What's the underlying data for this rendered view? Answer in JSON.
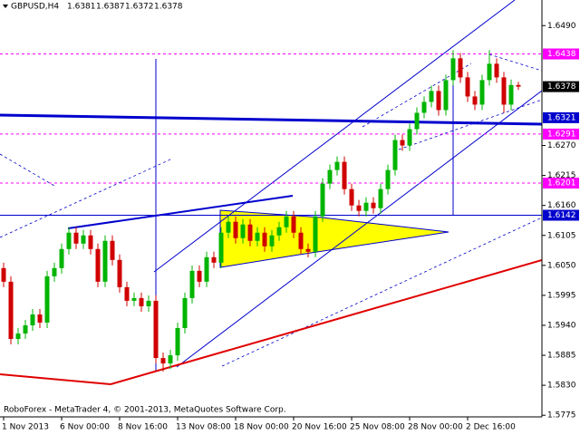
{
  "chart_data": {
    "type": "candlestick",
    "title": "GBPUSD,H4",
    "footer": "RoboForex - MetaTrader 4, © 2001-2013, MetaQuotes Software Corp.",
    "up_color": "#00b400",
    "down_color": "#d00000",
    "categories": [
      "1 Nov 2013",
      null,
      null,
      null,
      null,
      null,
      null,
      null,
      "6 Nov 00:00",
      null,
      null,
      null,
      null,
      null,
      null,
      null,
      "8 Nov 16:00",
      null,
      null,
      null,
      null,
      null,
      null,
      null,
      "13 Nov 08:00",
      null,
      null,
      null,
      null,
      null,
      null,
      null,
      "18 Nov 00:00",
      null,
      null,
      null,
      null,
      null,
      null,
      null,
      "20 Nov 16:00",
      null,
      null,
      null,
      null,
      null,
      null,
      null,
      "25 Nov 08:00",
      null,
      null,
      null,
      null,
      null,
      null,
      null,
      "28 Nov 00:00",
      null,
      null,
      null,
      null,
      null,
      null,
      null,
      "2 Dec 16:00",
      null,
      null,
      null,
      null,
      null,
      null,
      null
    ],
    "open": [
      1.6045,
      1.602,
      1.5915,
      1.5925,
      1.594,
      1.596,
      1.5945,
      1.603,
      1.6045,
      1.608,
      1.611,
      1.609,
      1.6105,
      1.608,
      1.602,
      1.6095,
      1.606,
      1.601,
      1.5985,
      1.599,
      1.5975,
      1.5985,
      1.588,
      1.587,
      1.5885,
      1.5935,
      1.599,
      1.604,
      1.602,
      1.6065,
      1.6055,
      1.611,
      1.613,
      1.61,
      1.6125,
      1.6095,
      1.611,
      1.6085,
      1.6105,
      1.612,
      1.614,
      1.611,
      1.608,
      1.6075,
      1.614,
      1.62,
      1.6225,
      1.624,
      1.619,
      1.616,
      1.615,
      1.6165,
      1.6155,
      1.619,
      1.6225,
      1.628,
      1.627,
      1.63,
      1.633,
      1.635,
      1.637,
      1.6335,
      1.639,
      1.643,
      1.6395,
      1.636,
      1.6345,
      1.639,
      1.642,
      1.6395,
      1.6345,
      1.6381
    ],
    "high": [
      1.6055,
      1.603,
      1.5935,
      1.595,
      1.597,
      1.597,
      1.604,
      1.6055,
      1.609,
      1.612,
      1.612,
      1.6115,
      1.6115,
      1.609,
      1.6105,
      1.6105,
      1.607,
      1.602,
      1.6,
      1.6,
      1.5995,
      1.5995,
      1.589,
      1.5895,
      1.5945,
      1.6,
      1.605,
      1.605,
      1.6075,
      1.6075,
      1.612,
      1.614,
      1.614,
      1.6135,
      1.6135,
      1.612,
      1.612,
      1.6115,
      1.613,
      1.615,
      1.615,
      1.612,
      1.609,
      1.615,
      1.621,
      1.6235,
      1.625,
      1.625,
      1.62,
      1.617,
      1.6175,
      1.6175,
      1.62,
      1.6235,
      1.629,
      1.629,
      1.631,
      1.634,
      1.636,
      1.638,
      1.638,
      1.64,
      1.6445,
      1.644,
      1.6405,
      1.637,
      1.64,
      1.6445,
      1.643,
      1.6405,
      1.6391,
      1.6387
    ],
    "low": [
      1.601,
      1.5905,
      1.5905,
      1.5915,
      1.593,
      1.5935,
      1.5935,
      1.602,
      1.6035,
      1.607,
      1.608,
      1.608,
      1.607,
      1.601,
      1.601,
      1.605,
      1.6,
      1.5975,
      1.5975,
      1.5965,
      1.5965,
      1.587,
      1.5855,
      1.586,
      1.5875,
      1.5925,
      1.598,
      1.601,
      1.601,
      1.6045,
      1.6045,
      1.61,
      1.609,
      1.609,
      1.6085,
      1.6085,
      1.6075,
      1.6075,
      1.6095,
      1.611,
      1.61,
      1.607,
      1.6065,
      1.6065,
      1.613,
      1.619,
      1.6215,
      1.618,
      1.615,
      1.614,
      1.614,
      1.6145,
      1.6145,
      1.618,
      1.6215,
      1.626,
      1.626,
      1.629,
      1.632,
      1.634,
      1.6325,
      1.6325,
      1.638,
      1.6385,
      1.635,
      1.6335,
      1.6335,
      1.638,
      1.6385,
      1.633,
      1.6335,
      1.6372
    ],
    "close": [
      1.602,
      1.5915,
      1.5925,
      1.594,
      1.596,
      1.5945,
      1.603,
      1.6045,
      1.608,
      1.611,
      1.609,
      1.6105,
      1.608,
      1.602,
      1.6095,
      1.606,
      1.601,
      1.5985,
      1.599,
      1.5975,
      1.5985,
      1.588,
      1.587,
      1.5885,
      1.5935,
      1.599,
      1.604,
      1.602,
      1.6065,
      1.6055,
      1.611,
      1.613,
      1.61,
      1.6125,
      1.6095,
      1.611,
      1.6085,
      1.6105,
      1.612,
      1.614,
      1.611,
      1.608,
      1.6075,
      1.614,
      1.62,
      1.6225,
      1.624,
      1.619,
      1.616,
      1.615,
      1.6165,
      1.6155,
      1.619,
      1.6225,
      1.628,
      1.627,
      1.63,
      1.633,
      1.635,
      1.637,
      1.6335,
      1.639,
      1.643,
      1.6395,
      1.636,
      1.6345,
      1.639,
      1.642,
      1.6395,
      1.6345,
      1.6381,
      1.6378
    ],
    "ylim": [
      1.5772,
      1.6537
    ],
    "yticks": [
      {
        "value": 1.649,
        "label": "1.6490"
      },
      {
        "value": 1.627,
        "label": "1.6270"
      },
      1.6215,
      {
        "value": 1.616,
        "label": "1.6160"
      },
      1.6105,
      {
        "value": 1.605,
        "label": "1.6050"
      },
      1.5995,
      {
        "value": 1.594,
        "label": "1.5940"
      },
      1.5885,
      {
        "value": 1.583,
        "label": "1.5830"
      },
      1.5775
    ],
    "levels": [
      {
        "value": 1.6438,
        "color": "#ff00ff",
        "style": "dash"
      },
      {
        "value": 1.6378,
        "color": "#000000",
        "style": "none"
      },
      {
        "value": 1.6321,
        "color": "#0000cd",
        "style": "none"
      },
      {
        "value": 1.6291,
        "color": "#ff00ff",
        "style": "dash"
      },
      {
        "value": 1.6201,
        "color": "#ff00ff",
        "style": "dash"
      },
      {
        "value": 1.6142,
        "color": "#0000cd",
        "style": "solid"
      }
    ]
  }
}
